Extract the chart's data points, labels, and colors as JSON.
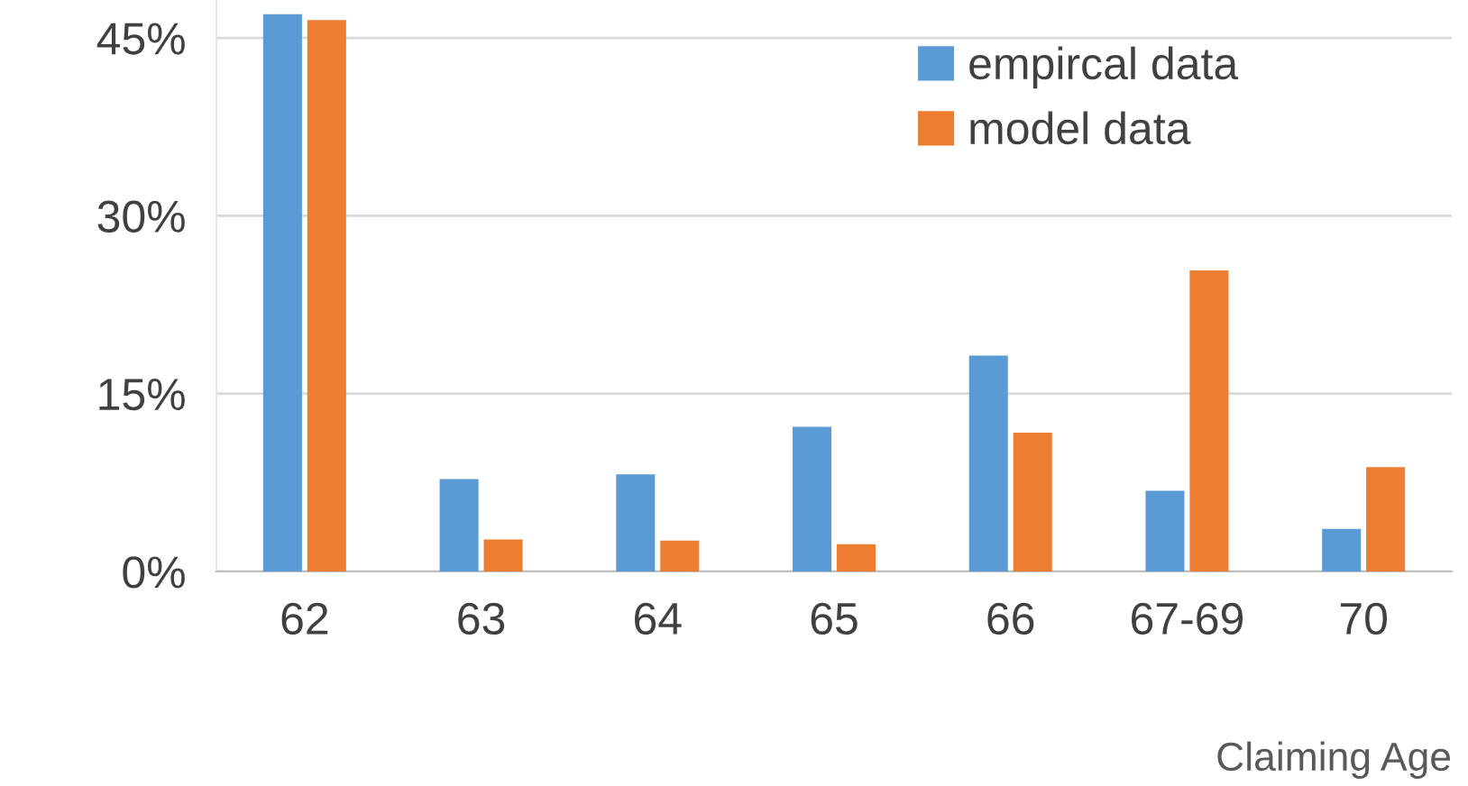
{
  "chart_data": {
    "type": "bar",
    "xlabel": "Claiming Age",
    "categories": [
      "62",
      "63",
      "64",
      "65",
      "66",
      "67-69",
      "70"
    ],
    "series": [
      {
        "name": "empircal data",
        "color": "#5b9bd5",
        "values": [
          47.0,
          7.8,
          8.2,
          12.2,
          18.2,
          6.8,
          3.6
        ]
      },
      {
        "name": "model data",
        "color": "#ed7d31",
        "values": [
          46.5,
          2.7,
          2.6,
          2.3,
          11.7,
          25.4,
          8.8
        ]
      }
    ],
    "ylim": [
      0,
      48.2
    ],
    "yticks": [
      {
        "value": 0,
        "label": "0%"
      },
      {
        "value": 15,
        "label": "15%"
      },
      {
        "value": 30,
        "label": "30%"
      },
      {
        "value": 45,
        "label": "45%"
      }
    ],
    "grid": "y",
    "legend": "top right"
  }
}
